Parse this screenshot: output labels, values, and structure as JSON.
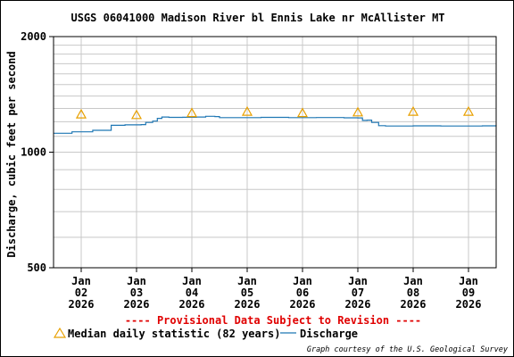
{
  "chart_data": {
    "type": "line",
    "title": "USGS 06041000 Madison River bl Ennis Lake nr McAllister MT",
    "ylabel": "Discharge, cubic feet per second",
    "xlabel": "",
    "y_scale": "log",
    "ylim": [
      500,
      2000
    ],
    "y_ticks": [
      {
        "value": 500,
        "label": "500"
      },
      {
        "value": 1000,
        "label": "1000"
      },
      {
        "value": 2000,
        "label": "2000"
      }
    ],
    "xlim": [
      "2026-01-01T12:00",
      "2026-01-09T12:00"
    ],
    "x_ticks": [
      {
        "date": "2026-01-02",
        "month": "Jan",
        "day": "02",
        "year": "2026"
      },
      {
        "date": "2026-01-03",
        "month": "Jan",
        "day": "03",
        "year": "2026"
      },
      {
        "date": "2026-01-04",
        "month": "Jan",
        "day": "04",
        "year": "2026"
      },
      {
        "date": "2026-01-05",
        "month": "Jan",
        "day": "05",
        "year": "2026"
      },
      {
        "date": "2026-01-06",
        "month": "Jan",
        "day": "06",
        "year": "2026"
      },
      {
        "date": "2026-01-07",
        "month": "Jan",
        "day": "07",
        "year": "2026"
      },
      {
        "date": "2026-01-08",
        "month": "Jan",
        "day": "08",
        "year": "2026"
      },
      {
        "date": "2026-01-09",
        "month": "Jan",
        "day": "09",
        "year": "2026"
      }
    ],
    "grid": true,
    "series": [
      {
        "name": "Discharge",
        "color": "#1f77b4",
        "points": [
          [
            "2026-01-01T12:00",
            1120
          ],
          [
            "2026-01-01T18:00",
            1120
          ],
          [
            "2026-01-01T20:00",
            1130
          ],
          [
            "2026-01-02T04:00",
            1130
          ],
          [
            "2026-01-02T05:00",
            1140
          ],
          [
            "2026-01-02T12:00",
            1140
          ],
          [
            "2026-01-02T13:00",
            1175
          ],
          [
            "2026-01-02T18:00",
            1175
          ],
          [
            "2026-01-02T19:00",
            1178
          ],
          [
            "2026-01-03T02:00",
            1180
          ],
          [
            "2026-01-03T04:00",
            1195
          ],
          [
            "2026-01-03T07:00",
            1205
          ],
          [
            "2026-01-03T09:00",
            1225
          ],
          [
            "2026-01-03T11:00",
            1235
          ],
          [
            "2026-01-03T14:00",
            1232
          ],
          [
            "2026-01-03T20:00",
            1233
          ],
          [
            "2026-01-04T02:00",
            1235
          ],
          [
            "2026-01-04T06:00",
            1240
          ],
          [
            "2026-01-04T10:00",
            1238
          ],
          [
            "2026-01-04T12:00",
            1230
          ],
          [
            "2026-01-04T18:00",
            1230
          ],
          [
            "2026-01-05T06:00",
            1232
          ],
          [
            "2026-01-05T18:00",
            1230
          ],
          [
            "2026-01-06T06:00",
            1231
          ],
          [
            "2026-01-06T18:00",
            1229
          ],
          [
            "2026-01-07T00:00",
            1228
          ],
          [
            "2026-01-07T02:00",
            1210
          ],
          [
            "2026-01-07T04:00",
            1212
          ],
          [
            "2026-01-07T06:00",
            1195
          ],
          [
            "2026-01-07T09:00",
            1172
          ],
          [
            "2026-01-07T12:00",
            1170
          ],
          [
            "2026-01-08T00:00",
            1171
          ],
          [
            "2026-01-08T12:00",
            1170
          ],
          [
            "2026-01-09T00:00",
            1170
          ],
          [
            "2026-01-09T06:00",
            1171
          ],
          [
            "2026-01-09T12:00",
            1170
          ]
        ]
      },
      {
        "name": "Median daily statistic (82 years)",
        "marker": "triangle",
        "color": "#e8a000",
        "points": [
          [
            "2026-01-02T00:00",
            1255
          ],
          [
            "2026-01-03T00:00",
            1250
          ],
          [
            "2026-01-04T00:00",
            1265
          ],
          [
            "2026-01-05T00:00",
            1275
          ],
          [
            "2026-01-06T00:00",
            1265
          ],
          [
            "2026-01-07T00:00",
            1270
          ],
          [
            "2026-01-08T00:00",
            1275
          ],
          [
            "2026-01-09T00:00",
            1275
          ]
        ]
      }
    ],
    "legend": {
      "placement": "bottom",
      "items": [
        {
          "label": "Median daily statistic (82 years)",
          "symbol": "triangle",
          "color": "#e8a000"
        },
        {
          "label": "Discharge",
          "symbol": "line",
          "color": "#1f77b4"
        }
      ]
    },
    "annotations": {
      "provisional": "---- Provisional Data Subject to Revision ----",
      "provisional_color": "#e00000",
      "credit": "Graph courtesy of the U.S. Geological Survey"
    }
  }
}
